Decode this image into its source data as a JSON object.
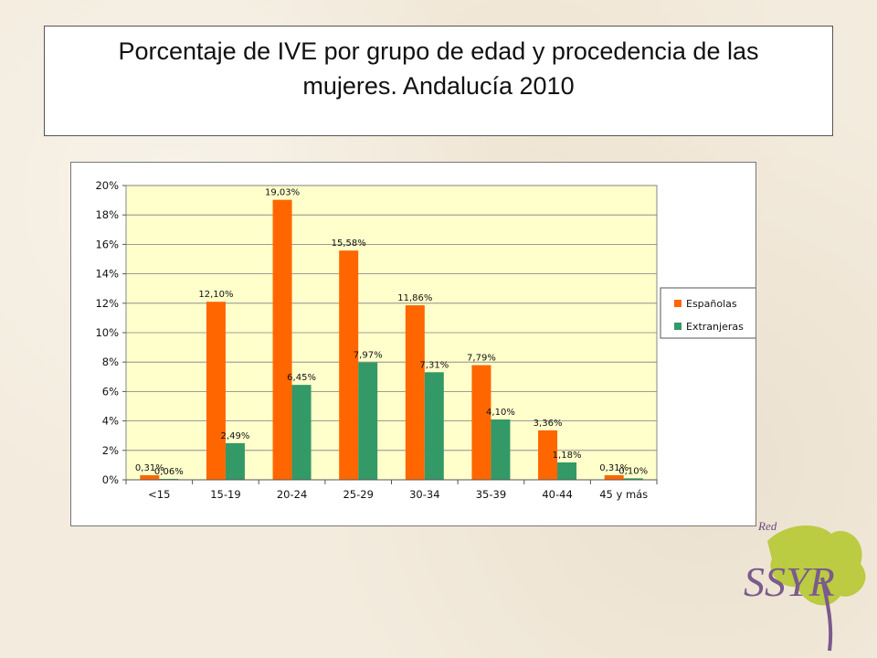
{
  "title": "Porcentaje  de IVE por grupo de edad y procedencia de las\nmujeres. Andalucía 2010",
  "chart_data": {
    "type": "bar",
    "categories": [
      "<15",
      "15-19",
      "20-24",
      "25-29",
      "30-34",
      "35-39",
      "40-44",
      "45 y más"
    ],
    "series": [
      {
        "name": "Españolas",
        "color": "#ff6600",
        "values": [
          0.31,
          12.1,
          19.03,
          15.58,
          11.86,
          7.79,
          3.36,
          0.31
        ],
        "labels": [
          "0,31%",
          "12,10%",
          "19,03%",
          "15,58%",
          "11,86%",
          "7,79%",
          "3,36%",
          "0,31%"
        ]
      },
      {
        "name": "Extranjeras",
        "color": "#339966",
        "values": [
          0.06,
          2.49,
          6.45,
          7.97,
          7.31,
          4.1,
          1.18,
          0.1
        ],
        "labels": [
          "0,06%",
          "2,49%",
          "6,45%",
          "7,97%",
          "7,31%",
          "4,10%",
          "1,18%",
          "0,10%"
        ]
      }
    ],
    "yticks": [
      "0%",
      "2%",
      "4%",
      "6%",
      "8%",
      "10%",
      "12%",
      "14%",
      "16%",
      "18%",
      "20%"
    ],
    "ylim": [
      0,
      20
    ],
    "grid": true,
    "plot_background": "#ffffcc",
    "legend": "right"
  },
  "logo": {
    "text_small": "Red",
    "text_main": "SSYR"
  }
}
